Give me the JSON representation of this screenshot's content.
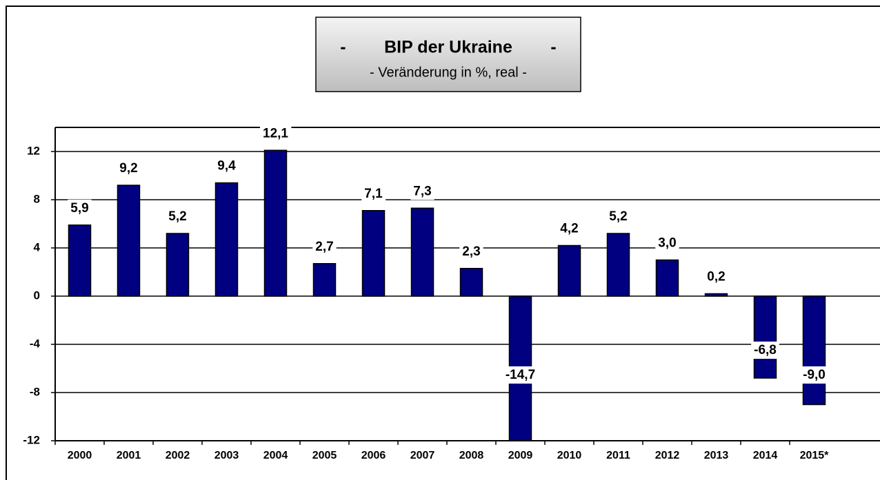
{
  "chart_data": {
    "type": "bar",
    "title": "-        BIP der Ukraine        -",
    "subtitle": "- Veränderung in %, real -",
    "categories": [
      "2000",
      "2001",
      "2002",
      "2003",
      "2004",
      "2005",
      "2006",
      "2007",
      "2008",
      "2009",
      "2010",
      "2011",
      "2012",
      "2013",
      "2014",
      "2015*"
    ],
    "values": [
      5.9,
      9.2,
      5.2,
      9.4,
      12.1,
      2.7,
      7.1,
      7.3,
      2.3,
      -14.7,
      4.2,
      5.2,
      3.0,
      0.2,
      -6.8,
      -9.0
    ],
    "value_labels": [
      "5,9",
      "9,2",
      "5,2",
      "9,4",
      "12,1",
      "2,7",
      "7,1",
      "7,3",
      "2,3",
      "-14,7",
      "4,2",
      "5,2",
      "3,0",
      "0,2",
      "-6,8",
      "-9,0"
    ],
    "color": "#000080",
    "ylim": [
      -12,
      14
    ],
    "yticks": [
      -12,
      -8,
      -4,
      0,
      4,
      8,
      12
    ],
    "grid": true
  }
}
